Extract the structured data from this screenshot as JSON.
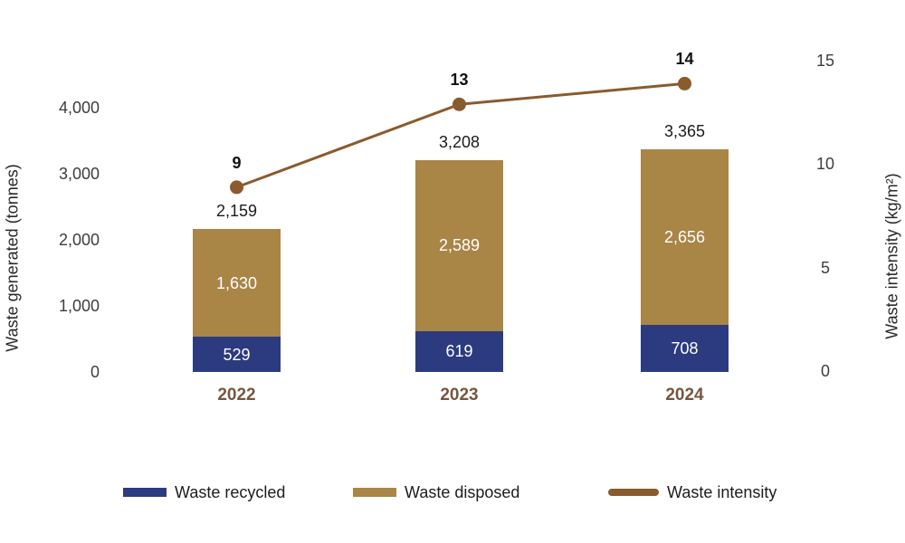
{
  "chart_data": {
    "type": "bar",
    "subtype": "stacked-bar-with-line-combo",
    "categories": [
      "2022",
      "2023",
      "2024"
    ],
    "series": [
      {
        "name": "Waste recycled",
        "role": "bar",
        "color": "#2c3b7f",
        "values": [
          529,
          619,
          708
        ]
      },
      {
        "name": "Waste disposed",
        "role": "bar",
        "color": "#a98546",
        "values": [
          1630,
          2589,
          2656
        ]
      },
      {
        "name": "Waste intensity",
        "role": "line",
        "color": "#8a5b2d",
        "values": [
          9,
          13,
          14
        ]
      }
    ],
    "bar_totals": [
      2159,
      3208,
      3365
    ],
    "left_axis": {
      "label": "Waste generated (tonnes)",
      "ticks": [
        0,
        1000,
        2000,
        3000,
        4000
      ],
      "range": [
        0,
        4000
      ]
    },
    "right_axis": {
      "label": "Waste intensity (kg/m²)",
      "ticks": [
        0,
        5,
        10,
        15
      ],
      "range": [
        0,
        15
      ]
    },
    "legend": [
      {
        "label": "Waste recycled",
        "swatch": "rect",
        "color": "#2c3b7f"
      },
      {
        "label": "Waste disposed",
        "swatch": "rect",
        "color": "#a98546"
      },
      {
        "label": "Waste intensity",
        "swatch": "line",
        "color": "#8a5b2d"
      }
    ],
    "grid": false,
    "legend_position": "bottom",
    "colors": {
      "category_label": "#775640",
      "tick_label": "#3d3d3d",
      "value_label_inside": "#ffffff",
      "value_label_total": "#1c1c1c",
      "background": "#ffffff"
    }
  }
}
